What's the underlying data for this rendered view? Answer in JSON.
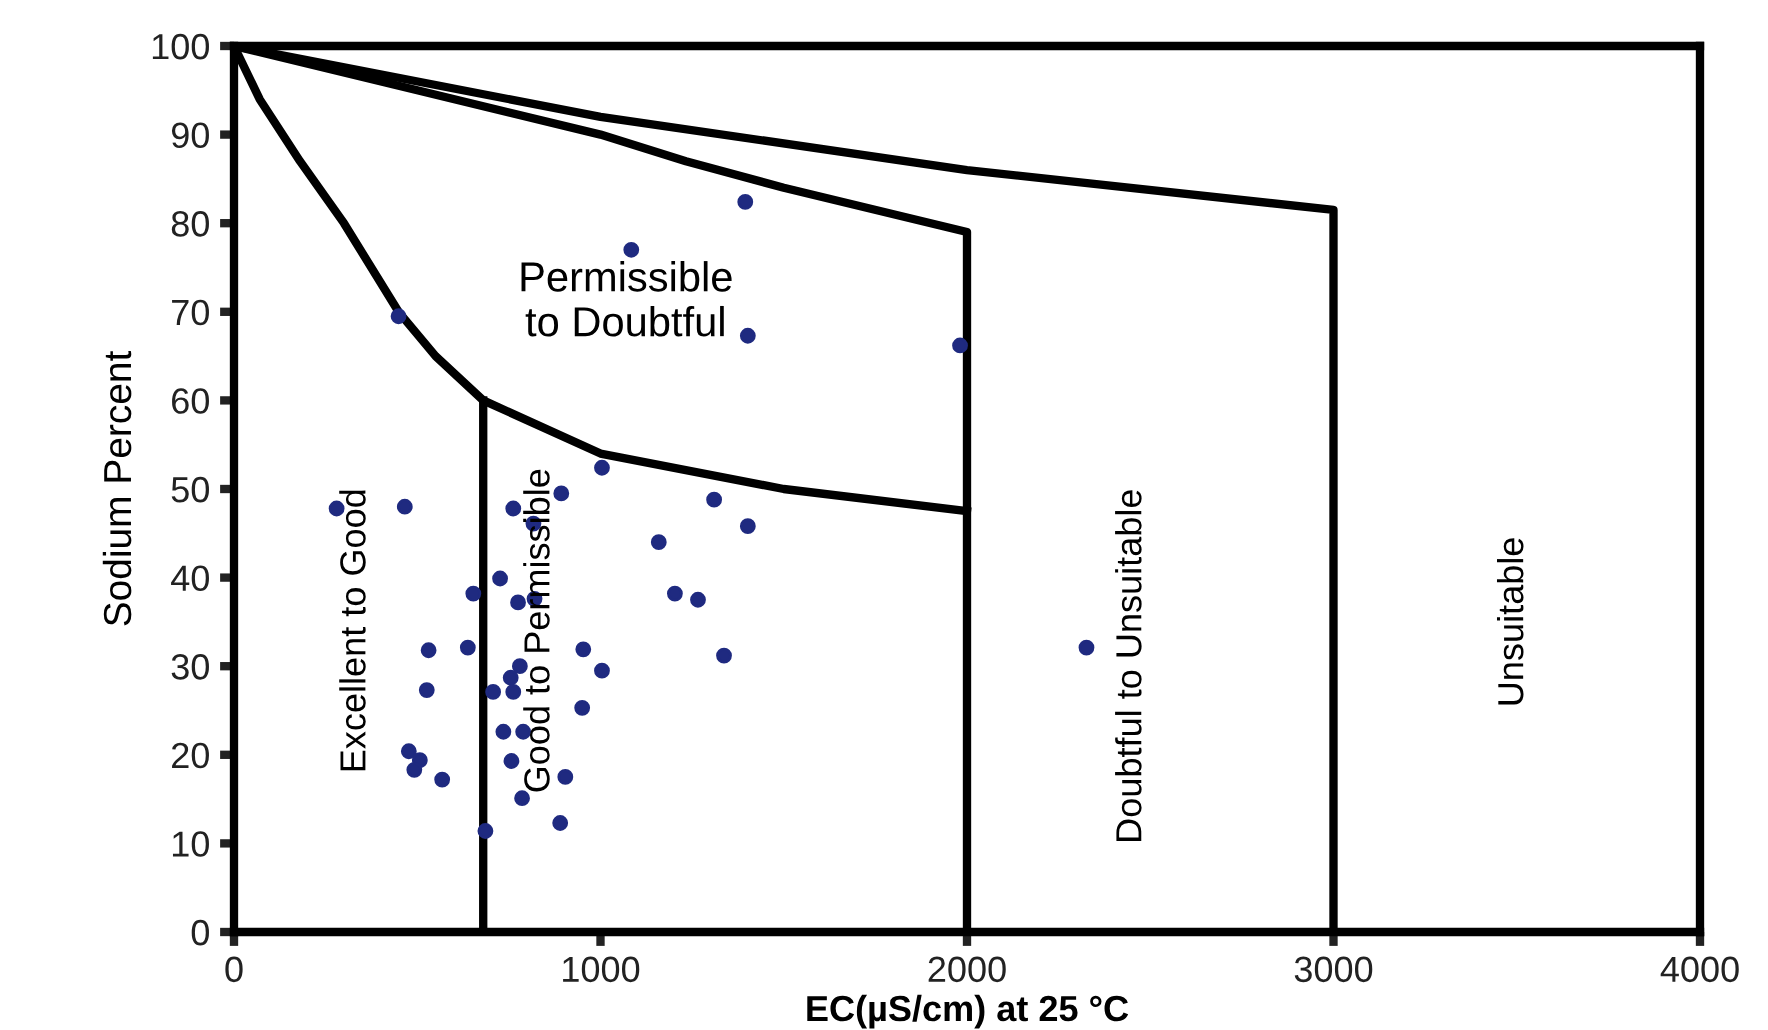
{
  "chart_data": {
    "type": "scatter",
    "xlabel": "EC(µS/cm) at 25 °C",
    "ylabel": "Sodium Percent",
    "xlim": [
      0,
      4000
    ],
    "ylim": [
      0,
      100
    ],
    "xticks": [
      0,
      1000,
      2000,
      3000,
      4000
    ],
    "yticks": [
      0,
      10,
      20,
      30,
      40,
      50,
      60,
      70,
      80,
      90,
      100
    ],
    "grid": false,
    "legend": false,
    "series": [
      {
        "color": "#1f2a80",
        "marker": "circle",
        "x": [
          280,
          466,
          762,
          817,
          893,
          1004,
          1159,
          1203,
          726,
          653,
          775,
          820,
          531,
          638,
          953,
          780,
          755,
          1004,
          526,
          707,
          762,
          950,
          735,
          789,
          477,
          507,
          492,
          568,
          757,
          904,
          786,
          890,
          686,
          1395,
          1084,
          449,
          1402,
          1981,
          1310,
          1402,
          1266,
          1337,
          2326
        ],
        "values": [
          47.8,
          48.0,
          47.8,
          46.1,
          49.5,
          52.4,
          44.0,
          38.2,
          39.9,
          38.2,
          37.2,
          37.6,
          31.8,
          32.1,
          31.9,
          30.0,
          28.7,
          29.5,
          27.3,
          27.1,
          27.1,
          25.3,
          22.6,
          22.6,
          20.4,
          19.4,
          18.3,
          17.2,
          19.3,
          17.5,
          15.1,
          12.3,
          11.4,
          82.4,
          77.0,
          69.5,
          67.3,
          66.2,
          48.8,
          45.8,
          37.5,
          31.2,
          32.1
        ]
      },
      {
        "type": "line",
        "marker": "none",
        "color": "#000000",
        "x": [
          0,
          1000,
          2000,
          3000,
          3000
        ],
        "values": [
          100,
          92,
          86,
          81.5,
          0
        ]
      },
      {
        "type": "line",
        "marker": "none",
        "color": "#000000",
        "x": [
          0,
          500,
          1000,
          1233,
          1500,
          2000,
          2000
        ],
        "values": [
          100,
          95,
          90,
          87,
          84,
          79,
          0
        ]
      },
      {
        "type": "line",
        "marker": "none",
        "color": "#000000",
        "x": [
          0,
          70,
          180,
          300,
          449,
          550,
          680,
          1000,
          1500,
          2000
        ],
        "values": [
          100,
          94,
          87,
          80,
          70,
          65,
          60,
          54,
          50,
          47.5
        ]
      },
      {
        "type": "line",
        "marker": "none",
        "color": "#000000",
        "x": [
          680,
          680
        ],
        "values": [
          60,
          0
        ]
      }
    ],
    "annotations": [
      "Permissible\nto Doubtful",
      "Excellent to Good",
      "Good to Permissible",
      "Doubtful to Unsuitable",
      "Unsuitable"
    ]
  }
}
